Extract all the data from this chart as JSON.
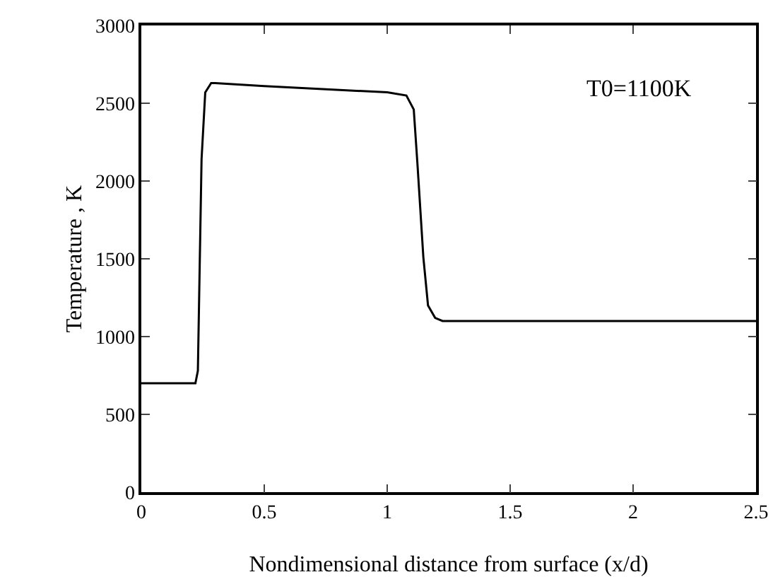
{
  "chart_data": {
    "type": "line",
    "xlabel": "Nondimensional distance from surface (x/d)",
    "ylabel": "Temperature , K",
    "x": [
      0,
      0.22,
      0.23,
      0.245,
      0.26,
      0.284,
      0.3,
      0.5,
      1.0,
      1.078,
      1.108,
      1.123,
      1.147,
      1.166,
      1.195,
      1.225,
      2.5
    ],
    "series": [
      {
        "color": "#000000",
        "values": [
          700,
          700,
          780,
          2140,
          2570,
          2630,
          2630,
          2610,
          2570,
          2550,
          2460,
          2110,
          1510,
          1200,
          1120,
          1100,
          1100
        ]
      }
    ],
    "xlim": [
      0,
      2.5
    ],
    "xticks": [
      0,
      0.5,
      1,
      1.5,
      2,
      2.5
    ],
    "ylim": [
      0,
      3000
    ],
    "yticks": [
      0,
      500,
      1000,
      1500,
      2000,
      2500,
      3000
    ],
    "annotations": [
      "T0=1100K"
    ],
    "grid": false,
    "marker": "none",
    "line_style": "solid"
  }
}
